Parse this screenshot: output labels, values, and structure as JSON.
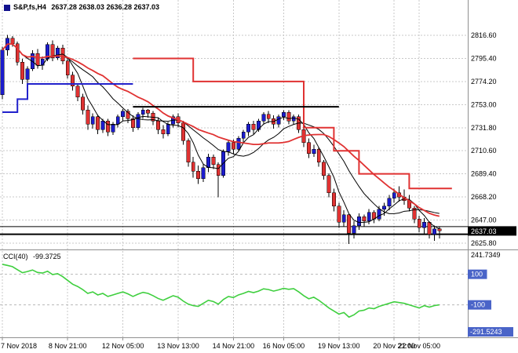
{
  "header": {
    "symbol": "S&P,fs,H4",
    "ohlc": "2637.28 2638.03 2636.28 2637.03"
  },
  "chart_data": {
    "type": "candlestick",
    "title": "S&P,fs,H4",
    "ohlc_display": {
      "open": "2637.28",
      "high": "2638.03",
      "low": "2636.28",
      "close": "2637.03"
    },
    "grid": true,
    "price_axis_labels": [
      "2816.60",
      "2795.40",
      "2774.20",
      "2753.00",
      "2731.80",
      "2710.60",
      "2689.40",
      "2668.20",
      "2647.00",
      "2625.80"
    ],
    "price_axis_range": {
      "top": 2816.6,
      "bottom": 2625.8
    },
    "current_price": "2637.03",
    "time_axis": [
      {
        "label": "7 Nov 2018",
        "bar": 0
      },
      {
        "label": "8 Nov 21:00",
        "bar": 13
      },
      {
        "label": "12 Nov 05:00",
        "bar": 24
      },
      {
        "label": "13 Nov 13:00",
        "bar": 35
      },
      {
        "label": "14 Nov 21:00",
        "bar": 46
      },
      {
        "label": "16 Nov 05:00",
        "bar": 56
      },
      {
        "label": "19 Nov 13:00",
        "bar": 67
      },
      {
        "label": "20 Nov 21:00",
        "bar": 78
      },
      {
        "label": "22 Nov 05:00",
        "bar": 83
      }
    ],
    "candles": [
      [
        2762,
        2806,
        2758,
        2803
      ],
      [
        2803,
        2817,
        2798,
        2814
      ],
      [
        2814,
        2816,
        2806,
        2809
      ],
      [
        2809,
        2811,
        2789,
        2792
      ],
      [
        2792,
        2795,
        2772,
        2776
      ],
      [
        2776,
        2788,
        2772,
        2786
      ],
      [
        2786,
        2803,
        2784,
        2800
      ],
      [
        2800,
        2804,
        2786,
        2789
      ],
      [
        2789,
        2797,
        2785,
        2795
      ],
      [
        2795,
        2810,
        2793,
        2808
      ],
      [
        2808,
        2812,
        2793,
        2796
      ],
      [
        2796,
        2807,
        2794,
        2805
      ],
      [
        2805,
        2808,
        2790,
        2793
      ],
      [
        2793,
        2796,
        2777,
        2780
      ],
      [
        2780,
        2783,
        2766,
        2770
      ],
      [
        2770,
        2772,
        2756,
        2760
      ],
      [
        2760,
        2763,
        2744,
        2748
      ],
      [
        2748,
        2752,
        2730,
        2735
      ],
      [
        2735,
        2745,
        2731,
        2742
      ],
      [
        2742,
        2744,
        2726,
        2730
      ],
      [
        2730,
        2740,
        2727,
        2738
      ],
      [
        2738,
        2740,
        2724,
        2728
      ],
      [
        2728,
        2737,
        2725,
        2735
      ],
      [
        2735,
        2744,
        2732,
        2742
      ],
      [
        2742,
        2749,
        2738,
        2747
      ],
      [
        2747,
        2749,
        2736,
        2740
      ],
      [
        2740,
        2743,
        2728,
        2732
      ],
      [
        2732,
        2746,
        2730,
        2744
      ],
      [
        2744,
        2750,
        2740,
        2748
      ],
      [
        2748,
        2749,
        2741,
        2745
      ],
      [
        2745,
        2747,
        2734,
        2738
      ],
      [
        2738,
        2741,
        2726,
        2730
      ],
      [
        2730,
        2734,
        2722,
        2726
      ],
      [
        2726,
        2737,
        2724,
        2735
      ],
      [
        2735,
        2744,
        2732,
        2742
      ],
      [
        2742,
        2745,
        2732,
        2736
      ],
      [
        2736,
        2738,
        2716,
        2720
      ],
      [
        2720,
        2722,
        2696,
        2700
      ],
      [
        2700,
        2705,
        2686,
        2692
      ],
      [
        2692,
        2697,
        2680,
        2685
      ],
      [
        2685,
        2698,
        2682,
        2695
      ],
      [
        2695,
        2708,
        2691,
        2705
      ],
      [
        2705,
        2707,
        2694,
        2698
      ],
      [
        2698,
        2700,
        2668,
        2688
      ],
      [
        2688,
        2712,
        2686,
        2710
      ],
      [
        2710,
        2720,
        2706,
        2718
      ],
      [
        2718,
        2721,
        2708,
        2712
      ],
      [
        2712,
        2724,
        2710,
        2722
      ],
      [
        2722,
        2730,
        2718,
        2728
      ],
      [
        2728,
        2737,
        2724,
        2735
      ],
      [
        2735,
        2738,
        2726,
        2730
      ],
      [
        2730,
        2740,
        2728,
        2738
      ],
      [
        2738,
        2746,
        2735,
        2744
      ],
      [
        2744,
        2747,
        2736,
        2740
      ],
      [
        2740,
        2743,
        2731,
        2735
      ],
      [
        2735,
        2744,
        2732,
        2742
      ],
      [
        2742,
        2748,
        2739,
        2746
      ],
      [
        2746,
        2748,
        2735,
        2738
      ],
      [
        2738,
        2744,
        2735,
        2742
      ],
      [
        2742,
        2744,
        2727,
        2730
      ],
      [
        2730,
        2733,
        2714,
        2718
      ],
      [
        2718,
        2722,
        2704,
        2708
      ],
      [
        2708,
        2716,
        2705,
        2712
      ],
      [
        2712,
        2714,
        2696,
        2700
      ],
      [
        2700,
        2702,
        2684,
        2688
      ],
      [
        2688,
        2690,
        2668,
        2672
      ],
      [
        2672,
        2676,
        2655,
        2660
      ],
      [
        2660,
        2663,
        2640,
        2645
      ],
      [
        2645,
        2656,
        2641,
        2652
      ],
      [
        2652,
        2653,
        2625,
        2635
      ],
      [
        2635,
        2646,
        2630,
        2642
      ],
      [
        2642,
        2653,
        2638,
        2650
      ],
      [
        2650,
        2652,
        2641,
        2646
      ],
      [
        2646,
        2657,
        2643,
        2654
      ],
      [
        2654,
        2656,
        2644,
        2648
      ],
      [
        2648,
        2660,
        2646,
        2657
      ],
      [
        2657,
        2663,
        2651,
        2660
      ],
      [
        2660,
        2670,
        2656,
        2667
      ],
      [
        2667,
        2676,
        2663,
        2672
      ],
      [
        2672,
        2678,
        2664,
        2668
      ],
      [
        2668,
        2675,
        2661,
        2665
      ],
      [
        2665,
        2670,
        2655,
        2658
      ],
      [
        2658,
        2660,
        2644,
        2648
      ],
      [
        2648,
        2651,
        2636,
        2640
      ],
      [
        2640,
        2649,
        2634,
        2645
      ],
      [
        2645,
        2646,
        2630,
        2634
      ],
      [
        2634,
        2642,
        2628,
        2639
      ],
      [
        2639,
        2641,
        2630,
        2637
      ]
    ],
    "overlays": {
      "ma_fast_period": 5,
      "ma_mid_period": 13,
      "ma_slow_period": 21,
      "blue_step": [
        [
          0,
          2746
        ],
        [
          3,
          2746
        ],
        [
          3,
          2758
        ],
        [
          5,
          2758
        ],
        [
          5,
          2772
        ],
        [
          26,
          2772
        ]
      ],
      "red_step": [
        [
          26,
          2795.4
        ],
        [
          38,
          2795.4
        ],
        [
          38,
          2774.2
        ],
        [
          60,
          2774.2
        ],
        [
          60,
          2731.8
        ],
        [
          66,
          2731.8
        ],
        [
          66,
          2710.6
        ],
        [
          71,
          2710.6
        ],
        [
          71,
          2689.4
        ],
        [
          81,
          2689.4
        ],
        [
          81,
          2676
        ],
        [
          89.5,
          2676
        ]
      ],
      "trendline": {
        "from_bar": 26,
        "to_bar": 67,
        "price": 2751
      },
      "hlines": [
        2641,
        2634
      ]
    },
    "indicator": {
      "name": "CCI(40)",
      "value": "-99.3725",
      "scale_max": "241.7349",
      "scale_min": "-291.5243",
      "levels": [
        "100",
        "-100"
      ],
      "values": [
        165,
        158,
        150,
        130,
        110,
        118,
        128,
        112,
        108,
        120,
        98,
        104,
        85,
        60,
        35,
        20,
        0,
        -25,
        -15,
        -35,
        -25,
        -45,
        -35,
        -25,
        -15,
        -28,
        -45,
        -30,
        -18,
        -25,
        -40,
        -58,
        -70,
        -55,
        -40,
        -50,
        -75,
        -95,
        -105,
        -110,
        -90,
        -70,
        -78,
        -95,
        -65,
        -45,
        -52,
        -35,
        -25,
        -12,
        -20,
        -10,
        5,
        0,
        -10,
        -2,
        8,
        2,
        6,
        -15,
        -40,
        -60,
        -50,
        -70,
        -95,
        -120,
        -140,
        -160,
        -150,
        -180,
        -165,
        -140,
        -135,
        -120,
        -125,
        -110,
        -100,
        -90,
        -80,
        -85,
        -90,
        -100,
        -110,
        -120,
        -105,
        -115,
        -105,
        -99.37
      ]
    },
    "colors": {
      "bull": "#1c1ccd",
      "bear": "#e03232",
      "ma": "#000000",
      "red_line": "#e03232",
      "blue_line": "#2222cc",
      "cci": "#3fcf3f",
      "grid": "#c8c8c8",
      "level": "#b8b8b8",
      "badge_price_bg": "#000000",
      "badge_level_bg": "#4a64c8",
      "divider": "#909090"
    }
  }
}
